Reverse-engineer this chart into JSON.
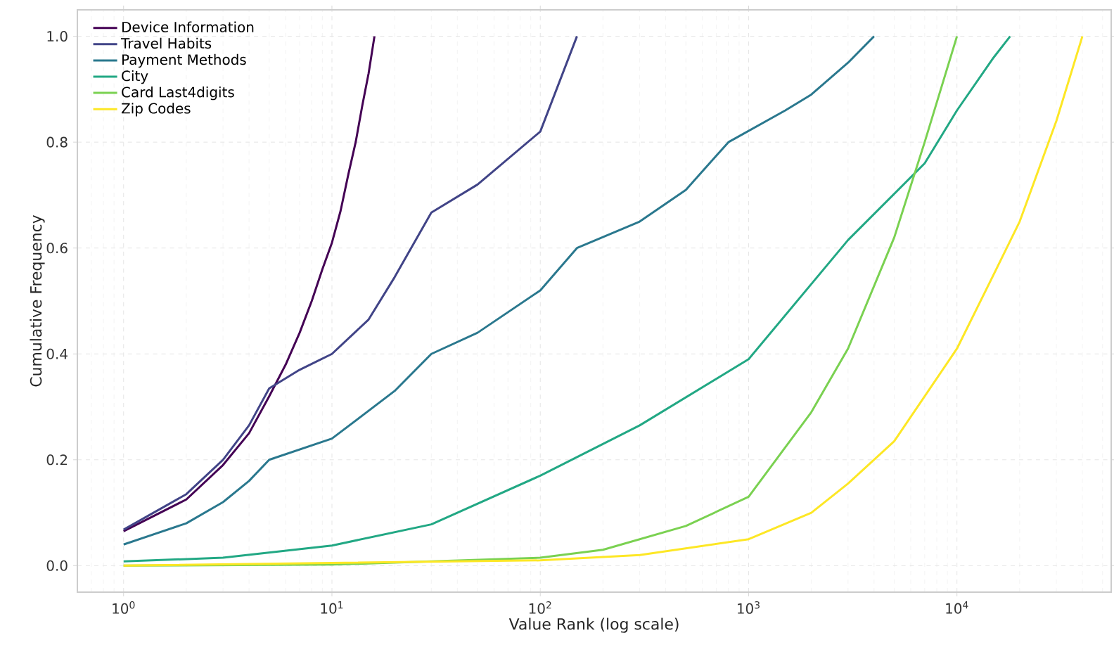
{
  "chart_data": {
    "type": "line",
    "xlabel": "Value Rank (log scale)",
    "ylabel": "Cumulative Frequency",
    "log": "x",
    "grid": true,
    "legend": "top left",
    "xlim": [
      0.6,
      55000
    ],
    "ylim": [
      -0.05,
      1.05
    ],
    "xticks": [
      {
        "value": 1,
        "label": "10$^{0}$"
      },
      {
        "value": 10,
        "label": "10$^{1}$"
      },
      {
        "value": 100,
        "label": "10$^{2}$"
      },
      {
        "value": 1000,
        "label": "10$^{3}$"
      },
      {
        "value": 10000,
        "label": "10$^{4}$"
      }
    ],
    "yticks": [
      {
        "value": 0,
        "label": "0.0"
      },
      {
        "value": 0.2,
        "label": "0.2"
      },
      {
        "value": 0.4,
        "label": "0.4"
      },
      {
        "value": 0.6,
        "label": "0.6"
      },
      {
        "value": 0.8,
        "label": "0.8"
      },
      {
        "value": 1.0,
        "label": "1.0"
      }
    ],
    "series": [
      {
        "name": "Device Information",
        "color": "#440154",
        "x": [
          1,
          2,
          3,
          4,
          5,
          6,
          7,
          8,
          9,
          10,
          11,
          12,
          13,
          14,
          15,
          16
        ],
        "values": [
          0.065,
          0.125,
          0.19,
          0.25,
          0.32,
          0.38,
          0.44,
          0.5,
          0.56,
          0.61,
          0.67,
          0.74,
          0.8,
          0.87,
          0.93,
          1.0
        ]
      },
      {
        "name": "Travel Habits",
        "color": "#414487",
        "x": [
          1,
          2,
          3,
          4,
          5,
          7,
          10,
          15,
          20,
          30,
          50,
          100,
          150
        ],
        "values": [
          0.068,
          0.135,
          0.2,
          0.265,
          0.335,
          0.37,
          0.4,
          0.465,
          0.545,
          0.667,
          0.72,
          0.82,
          1.0
        ]
      },
      {
        "name": "Payment Methods",
        "color": "#2a788e",
        "x": [
          1,
          2,
          3,
          4,
          5,
          10,
          20,
          30,
          50,
          100,
          150,
          300,
          500,
          800,
          1500,
          2000,
          3000,
          4000
        ],
        "values": [
          0.04,
          0.08,
          0.12,
          0.16,
          0.2,
          0.24,
          0.33,
          0.4,
          0.44,
          0.52,
          0.6,
          0.65,
          0.71,
          0.8,
          0.86,
          0.89,
          0.95,
          1.0
        ]
      },
      {
        "name": "City",
        "color": "#22a884",
        "x": [
          1,
          3,
          10,
          30,
          100,
          300,
          1000,
          3000,
          7000,
          10000,
          15000,
          18000
        ],
        "values": [
          0.008,
          0.015,
          0.038,
          0.078,
          0.17,
          0.265,
          0.39,
          0.615,
          0.76,
          0.86,
          0.96,
          1.0
        ]
      },
      {
        "name": "Card Last4digits",
        "color": "#7ad151",
        "x": [
          1,
          10,
          100,
          200,
          500,
          1000,
          2000,
          3000,
          5000,
          7000,
          10000
        ],
        "values": [
          0.0,
          0.002,
          0.015,
          0.03,
          0.075,
          0.13,
          0.29,
          0.41,
          0.62,
          0.8,
          1.0
        ]
      },
      {
        "name": "Zip Codes",
        "color": "#fde725",
        "x": [
          1,
          100,
          300,
          1000,
          2000,
          3000,
          5000,
          10000,
          15000,
          20000,
          30000,
          40000
        ],
        "values": [
          0.0,
          0.01,
          0.02,
          0.05,
          0.1,
          0.155,
          0.235,
          0.41,
          0.55,
          0.65,
          0.84,
          1.0
        ]
      }
    ]
  }
}
